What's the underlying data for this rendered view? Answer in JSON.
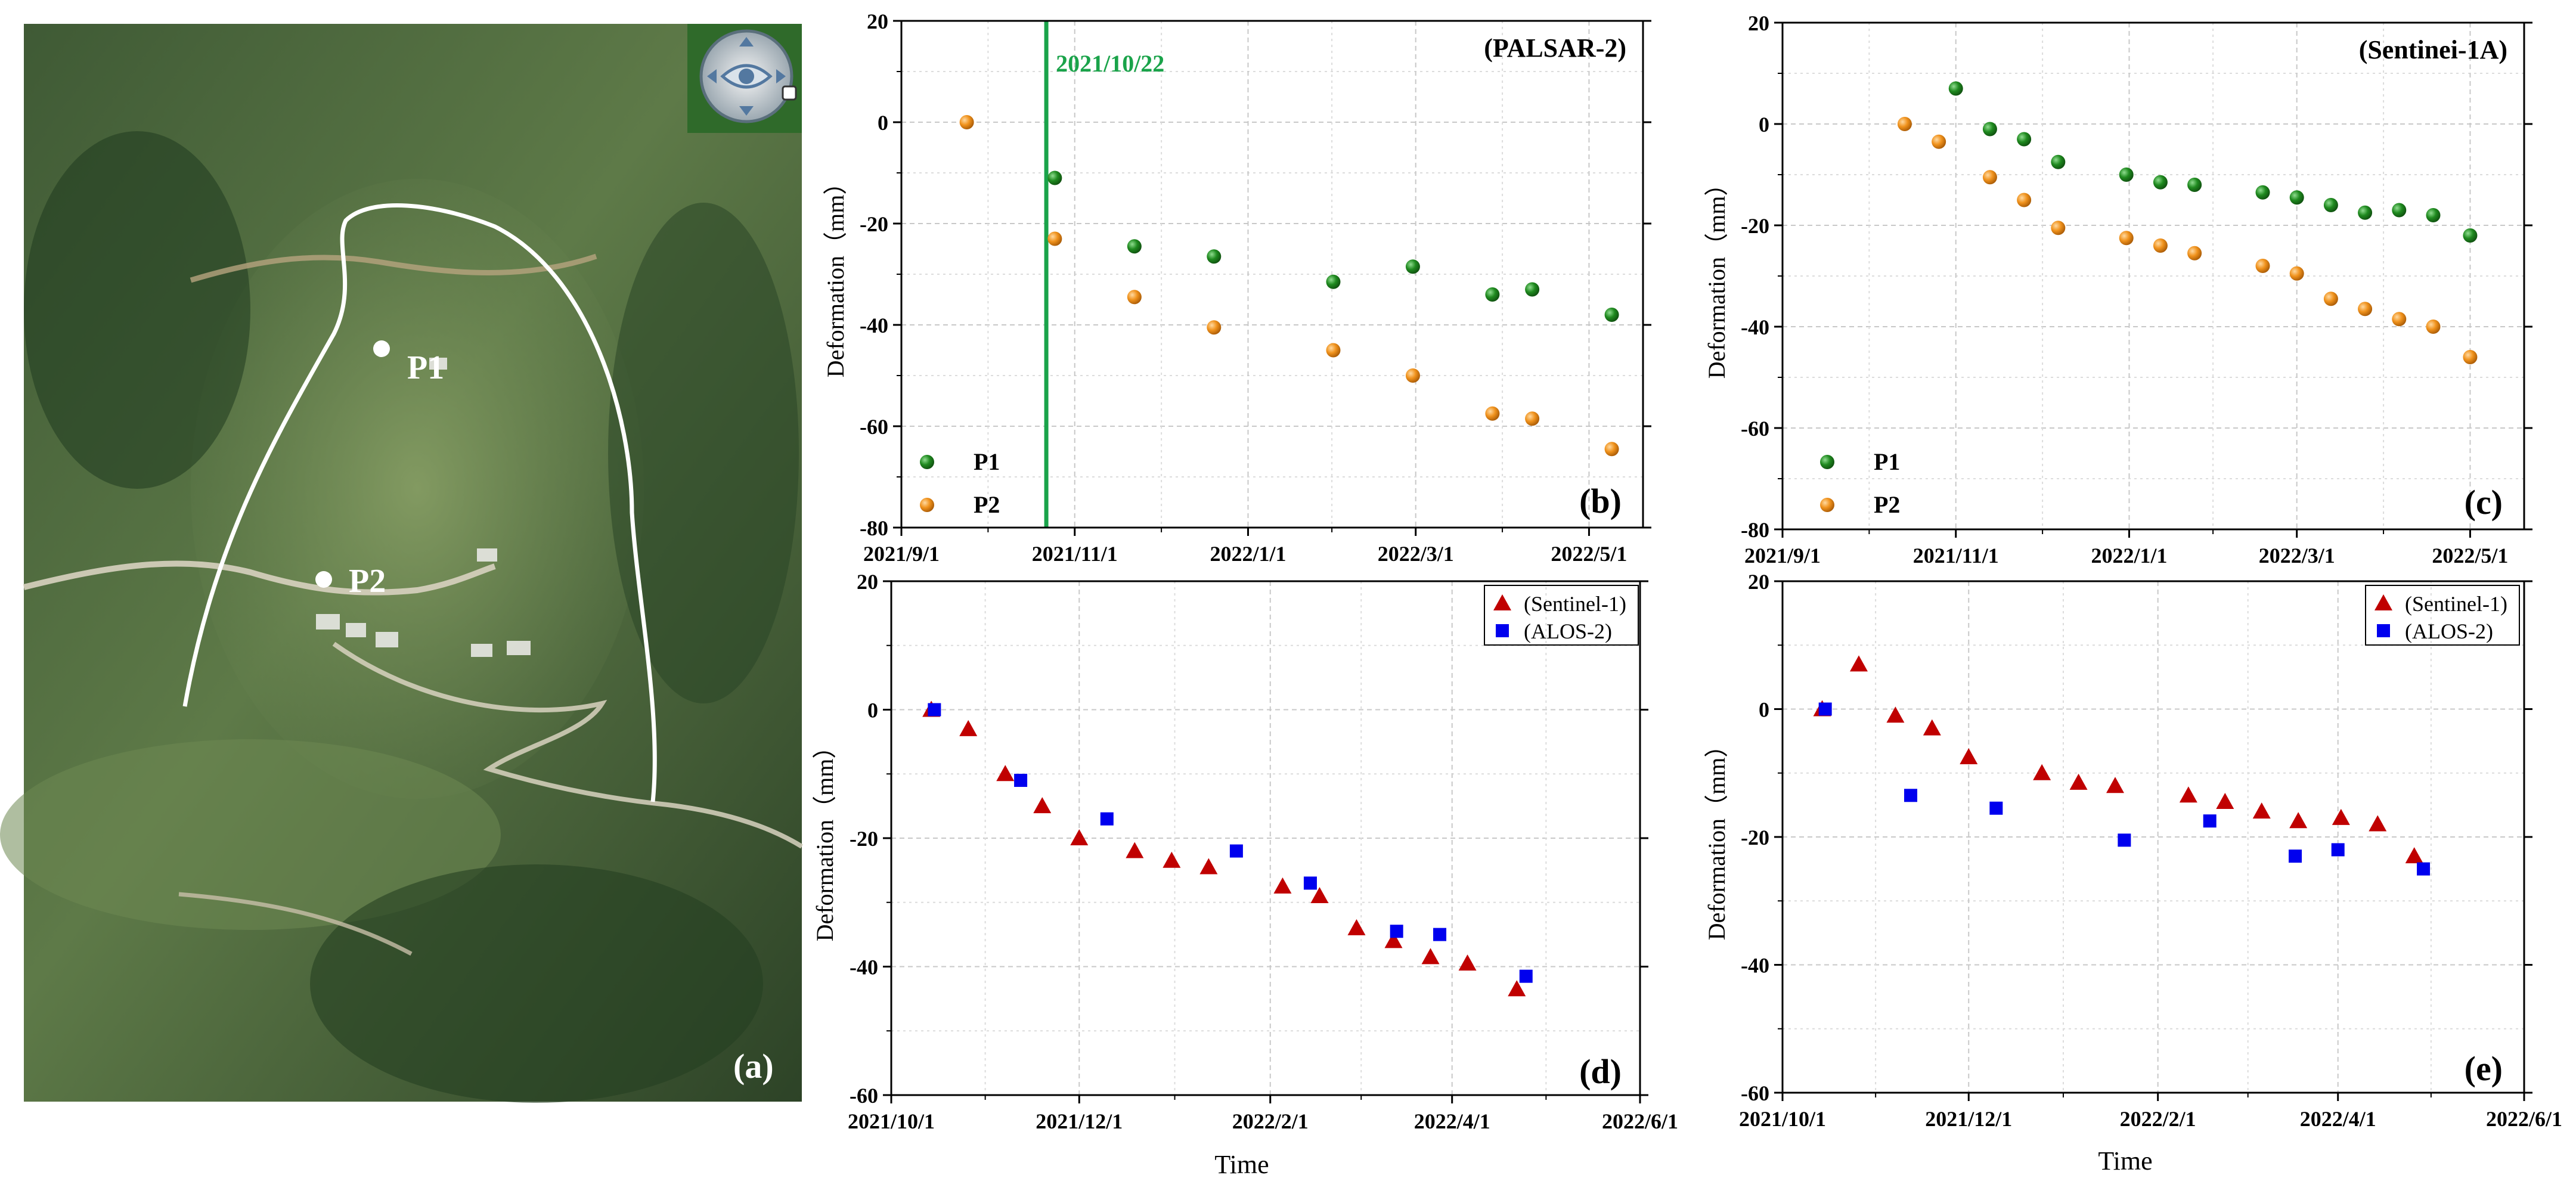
{
  "figure": {
    "map": {
      "panel_label": "(a)",
      "points": [
        "P1",
        "P2"
      ],
      "colors": {
        "boundary": "#ffffff",
        "marker": "#ffffff"
      },
      "widget_icon": "navigation-eye-icon"
    }
  },
  "chart_data": [
    {
      "panel_label": "(b)",
      "type": "scatter",
      "title": "(PALSAR-2)",
      "xlabel": "",
      "ylabel": "Deformation（mm）",
      "x_ticks": [
        "2021/9/1",
        "2021/11/1",
        "2022/1/1",
        "2022/3/1",
        "2022/5/1"
      ],
      "xlim": [
        "2021-09-01",
        "2022-05-20"
      ],
      "ylim": [
        -80,
        20
      ],
      "y_ticks": [
        -80,
        -60,
        -40,
        -20,
        0,
        20
      ],
      "grid": true,
      "legend_position": "bottom-left",
      "annotation": {
        "label": "2021/10/22",
        "x": "2021-10-22",
        "color": "#1aa34a"
      },
      "series": [
        {
          "name": "P1",
          "color": "#1f8a1f",
          "points": [
            [
              "2021-10-25",
              -11
            ],
            [
              "2021-11-22",
              -24.5
            ],
            [
              "2021-12-20",
              -26.5
            ],
            [
              "2022-01-31",
              -31.5
            ],
            [
              "2022-02-28",
              -28.5
            ],
            [
              "2022-03-28",
              -34
            ],
            [
              "2022-04-11",
              -33
            ],
            [
              "2022-05-09",
              -38
            ]
          ]
        },
        {
          "name": "P2",
          "color": "#f0921c",
          "points": [
            [
              "2021-09-24",
              0
            ],
            [
              "2021-10-25",
              -23
            ],
            [
              "2021-11-22",
              -34.5
            ],
            [
              "2021-12-20",
              -40.5
            ],
            [
              "2022-01-31",
              -45
            ],
            [
              "2022-02-28",
              -50
            ],
            [
              "2022-03-28",
              -57.5
            ],
            [
              "2022-04-11",
              -58.5
            ],
            [
              "2022-05-09",
              -64.5
            ]
          ]
        }
      ]
    },
    {
      "panel_label": "(c)",
      "type": "scatter",
      "title": "(Sentinei-1A)",
      "xlabel": "",
      "ylabel": "Deformation（mm）",
      "x_ticks": [
        "2021/9/1",
        "2021/11/1",
        "2022/1/1",
        "2022/3/1",
        "2022/5/1"
      ],
      "xlim": [
        "2021-09-01",
        "2022-05-20"
      ],
      "ylim": [
        -80,
        20
      ],
      "y_ticks": [
        -80,
        -60,
        -40,
        -20,
        0,
        20
      ],
      "grid": true,
      "legend_position": "bottom-left",
      "series": [
        {
          "name": "P1",
          "color": "#1f8a1f",
          "points": [
            [
              "2021-11-01",
              7
            ],
            [
              "2021-11-13",
              -1
            ],
            [
              "2021-11-25",
              -3
            ],
            [
              "2021-12-07",
              -7.5
            ],
            [
              "2021-12-31",
              -10
            ],
            [
              "2022-01-12",
              -11.5
            ],
            [
              "2022-01-24",
              -12
            ],
            [
              "2022-02-17",
              -13.5
            ],
            [
              "2022-03-01",
              -14.5
            ],
            [
              "2022-03-13",
              -16
            ],
            [
              "2022-03-25",
              -17.5
            ],
            [
              "2022-04-06",
              -17
            ],
            [
              "2022-04-18",
              -18
            ],
            [
              "2022-05-01",
              -22
            ]
          ]
        },
        {
          "name": "P2",
          "color": "#f0921c",
          "points": [
            [
              "2021-10-14",
              0
            ],
            [
              "2021-10-26",
              -3.5
            ],
            [
              "2021-11-13",
              -10.5
            ],
            [
              "2021-11-25",
              -15
            ],
            [
              "2021-12-07",
              -20.5
            ],
            [
              "2021-12-31",
              -22.5
            ],
            [
              "2022-01-12",
              -24
            ],
            [
              "2022-01-24",
              -25.5
            ],
            [
              "2022-02-17",
              -28
            ],
            [
              "2022-03-01",
              -29.5
            ],
            [
              "2022-03-13",
              -34.5
            ],
            [
              "2022-03-25",
              -36.5
            ],
            [
              "2022-04-06",
              -38.5
            ],
            [
              "2022-04-18",
              -40
            ],
            [
              "2022-05-01",
              -46
            ]
          ]
        }
      ]
    },
    {
      "panel_label": "(d)",
      "type": "scatter",
      "title": "",
      "xlabel": "Time",
      "ylabel": "Deformation（mm）",
      "x_ticks": [
        "2021/10/1",
        "2021/12/1",
        "2022/2/1",
        "2022/4/1",
        "2022/6/1"
      ],
      "xlim": [
        "2021-10-01",
        "2022-06-01"
      ],
      "ylim": [
        -60,
        20
      ],
      "y_ticks": [
        -60,
        -40,
        -20,
        0,
        20
      ],
      "grid": true,
      "legend_position": "top-right",
      "series": [
        {
          "name": "(Sentinel-1)",
          "marker": "triangle",
          "color": "#c00000",
          "points": [
            [
              "2021-10-14",
              0
            ],
            [
              "2021-10-26",
              -3
            ],
            [
              "2021-11-07",
              -10
            ],
            [
              "2021-11-19",
              -15
            ],
            [
              "2021-12-01",
              -20
            ],
            [
              "2021-12-19",
              -22
            ],
            [
              "2021-12-31",
              -23.5
            ],
            [
              "2022-01-12",
              -24.5
            ],
            [
              "2022-02-05",
              -27.5
            ],
            [
              "2022-02-17",
              -29
            ],
            [
              "2022-03-01",
              -34
            ],
            [
              "2022-03-13",
              -36
            ],
            [
              "2022-03-25",
              -38.5
            ],
            [
              "2022-04-06",
              -39.5
            ],
            [
              "2022-04-22",
              -43.5
            ]
          ]
        },
        {
          "name": "(ALOS-2)",
          "marker": "square",
          "color": "#0000ee",
          "points": [
            [
              "2021-10-15",
              0
            ],
            [
              "2021-11-12",
              -11
            ],
            [
              "2021-12-10",
              -17
            ],
            [
              "2022-01-21",
              -22
            ],
            [
              "2022-02-14",
              -27
            ],
            [
              "2022-03-14",
              -34.5
            ],
            [
              "2022-03-28",
              -35
            ],
            [
              "2022-04-25",
              -41.5
            ]
          ]
        }
      ]
    },
    {
      "panel_label": "(e)",
      "type": "scatter",
      "title": "",
      "xlabel": "Time",
      "ylabel": "Deformation（mm）",
      "x_ticks": [
        "2021/10/1",
        "2021/12/1",
        "2022/2/1",
        "2022/4/1",
        "2022/6/1"
      ],
      "xlim": [
        "2021-10-01",
        "2022-06-01"
      ],
      "ylim": [
        -60,
        20
      ],
      "y_ticks": [
        -60,
        -40,
        -20,
        0,
        20
      ],
      "grid": true,
      "legend_position": "top-right",
      "series": [
        {
          "name": "(Sentinel-1)",
          "marker": "triangle",
          "color": "#c00000",
          "points": [
            [
              "2021-10-14",
              0
            ],
            [
              "2021-10-26",
              7
            ],
            [
              "2021-11-07",
              -1
            ],
            [
              "2021-11-19",
              -3
            ],
            [
              "2021-12-01",
              -7.5
            ],
            [
              "2021-12-25",
              -10
            ],
            [
              "2022-01-06",
              -11.5
            ],
            [
              "2022-01-18",
              -12
            ],
            [
              "2022-02-11",
              -13.5
            ],
            [
              "2022-02-23",
              -14.5
            ],
            [
              "2022-03-07",
              -16
            ],
            [
              "2022-03-19",
              -17.5
            ],
            [
              "2022-04-02",
              -17
            ],
            [
              "2022-04-14",
              -18
            ],
            [
              "2022-04-26",
              -23
            ]
          ]
        },
        {
          "name": "(ALOS-2)",
          "marker": "square",
          "color": "#0000ee",
          "points": [
            [
              "2021-10-15",
              0
            ],
            [
              "2021-11-12",
              -13.5
            ],
            [
              "2021-12-10",
              -15.5
            ],
            [
              "2022-01-21",
              -20.5
            ],
            [
              "2022-02-18",
              -17.5
            ],
            [
              "2022-03-18",
              -23
            ],
            [
              "2022-04-01",
              -22
            ],
            [
              "2022-04-29",
              -25
            ]
          ]
        }
      ]
    }
  ]
}
